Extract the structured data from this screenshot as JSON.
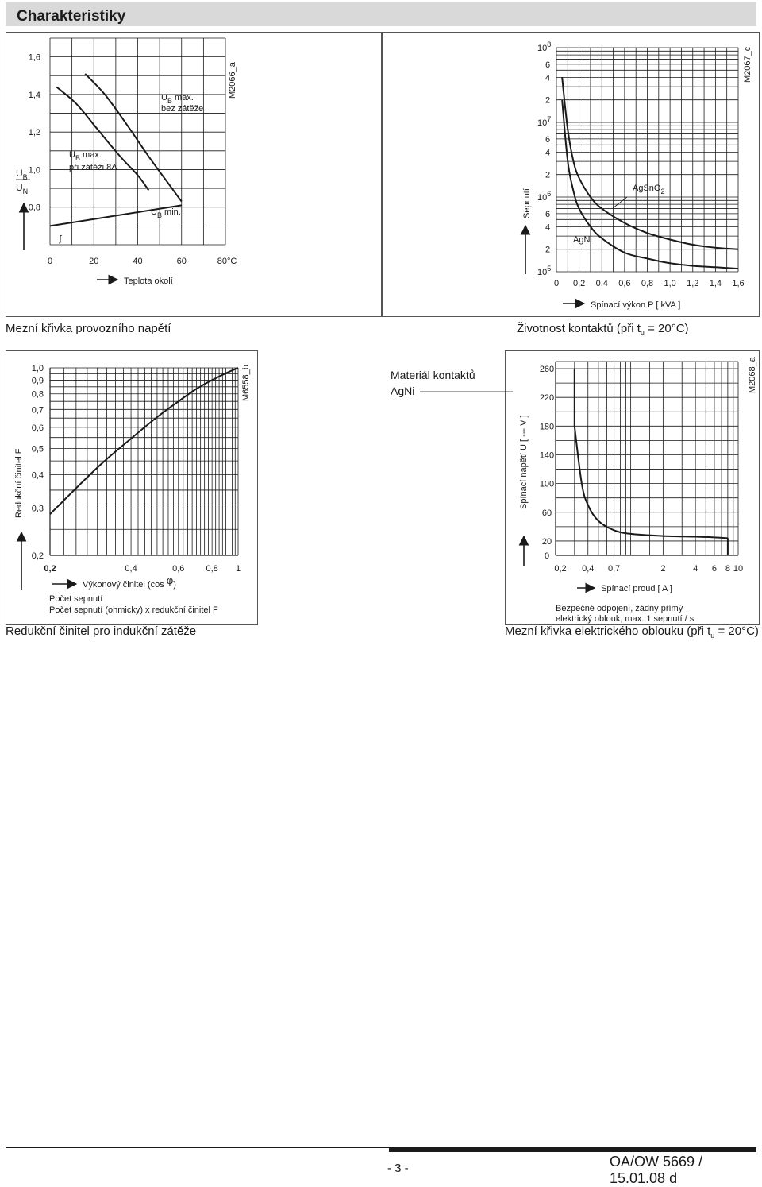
{
  "header": {
    "title": "Charakteristiky"
  },
  "captions": {
    "c1": "Mezní křivka provozního napětí",
    "c2_pre": "Životnost kontaktů (při t",
    "c2_sub": "u",
    "c2_post": " = 20°C)",
    "c3": "Redukční činitel pro indukční zátěže",
    "c4_pre": "Mezní křivka elektrického oblouku (při t",
    "c4_sub": "u",
    "c4_post": " = 20°C)"
  },
  "footer": {
    "page": "- 3 -",
    "doc": "OA/OW 5669 / 15.01.08 d"
  },
  "chart_data": [
    {
      "id": "M2066_a",
      "type": "line",
      "xlabel": "Teplota okolí",
      "x_ticks": [
        "0",
        "20",
        "40",
        "60",
        "80°C"
      ],
      "y_ticks": [
        "0,8",
        "1,0",
        "1,2",
        "1,4",
        "1,6"
      ],
      "ylabel": [
        "U",
        "B",
        "U",
        "N"
      ],
      "xlim": [
        0,
        80
      ],
      "ylim": [
        0.6,
        1.7
      ],
      "series": [
        {
          "name": "U B max. bez zátěže",
          "label_main": "U",
          "label_sub": "B",
          "label_rest": " max.",
          "label_line2": "bez zátěže",
          "x": [
            16,
            25,
            35,
            45,
            55,
            60
          ],
          "y": [
            1.51,
            1.4,
            1.24,
            1.07,
            0.91,
            0.83
          ]
        },
        {
          "name": "U B max. při zátěži 8A",
          "label_main": "U",
          "label_sub": "B",
          "label_rest": " max.",
          "label_line2": "při zátěži 8A",
          "x": [
            3,
            12,
            22,
            32,
            40,
            45
          ],
          "y": [
            1.44,
            1.35,
            1.21,
            1.07,
            0.97,
            0.89
          ]
        },
        {
          "name": "U B min.",
          "label_main": "U",
          "label_sub": "B",
          "label_rest": " min.",
          "x": [
            0,
            60
          ],
          "y": [
            0.7,
            0.81
          ]
        }
      ],
      "code": "M2066_a"
    },
    {
      "id": "M2067_c",
      "type": "line",
      "xlabel": "Spínací výkon P [ kVA ]",
      "ylabel": "Sepnutí",
      "y_scale": "log",
      "x_ticks": [
        "0",
        "0,2",
        "0,4",
        "0,6",
        "0,8",
        "1,0",
        "1,2",
        "1,4",
        "1,6"
      ],
      "y_tick_labels": [
        {
          "base": "10",
          "exp": "5"
        },
        {
          "base": "2"
        },
        {
          "base": "4"
        },
        {
          "base": "6"
        },
        {
          "base": "10",
          "exp": "6"
        },
        {
          "base": "2"
        },
        {
          "base": "4"
        },
        {
          "base": "6"
        },
        {
          "base": "10",
          "exp": "7"
        },
        {
          "base": "2"
        },
        {
          "base": "4"
        },
        {
          "base": "6"
        },
        {
          "base": "10",
          "exp": "8"
        }
      ],
      "xlim": [
        0,
        1.6
      ],
      "ylim": [
        100000,
        100000000
      ],
      "series": [
        {
          "name": "AgSnO2",
          "label_main": "AgSnO",
          "label_sub": "2",
          "x": [
            0.05,
            0.1,
            0.15,
            0.2,
            0.3,
            0.4,
            0.6,
            0.8,
            1.0,
            1.2,
            1.4,
            1.6
          ],
          "y": [
            40000000,
            8000000,
            3000000,
            1800000,
            1000000,
            700000,
            450000,
            330000,
            270000,
            230000,
            210000,
            200000
          ]
        },
        {
          "name": "AgNi",
          "label_main": "AgNi",
          "label_sub": "",
          "x": [
            0.05,
            0.1,
            0.15,
            0.2,
            0.3,
            0.4,
            0.6,
            0.8,
            1.0,
            1.2,
            1.4,
            1.6
          ],
          "y": [
            20000000,
            3000000,
            1200000,
            700000,
            400000,
            280000,
            180000,
            150000,
            130000,
            120000,
            115000,
            110000
          ]
        }
      ],
      "code": "M2067_c"
    },
    {
      "id": "M6558_b",
      "type": "line",
      "xlabel": "Výkonový činitel (cos ",
      "xlabel_phi": "φ",
      "xlabel_end": ")",
      "ylabel": "Redukční činitel F",
      "x_scale": "log",
      "y_scale": "log",
      "x_ticks": [
        "0,2",
        "0,4",
        "0,6",
        "0,8",
        "1"
      ],
      "y_ticks": [
        "0,2",
        "0,3",
        "0,4",
        "0,5",
        "0,6",
        "0,7",
        "0,8",
        "0,9",
        "1,0"
      ],
      "xlim": [
        0.2,
        1
      ],
      "ylim": [
        0.2,
        1.0
      ],
      "legend": [
        "Počet sepnutí",
        "Počet sepnutí (ohmicky) x redukční činitel F"
      ],
      "series": [
        {
          "x": [
            0.2,
            0.3,
            0.4,
            0.5,
            0.6,
            0.7,
            0.8,
            0.9,
            1.0
          ],
          "y": [
            0.285,
            0.425,
            0.545,
            0.655,
            0.75,
            0.835,
            0.9,
            0.955,
            1.0
          ]
        }
      ],
      "code": "M6558_b"
    },
    {
      "id": "M2068_a",
      "type": "line",
      "xlabel": "Spínací proud [ A ]",
      "ylabel": "Spínací napětí U [ --- V ]",
      "x_scale": "log",
      "x_ticks": [
        "0,2",
        "0,4",
        "0,7",
        "2",
        "4",
        "6",
        "8",
        "10"
      ],
      "y_ticks": [
        "0",
        "20",
        "60",
        "100",
        "140",
        "180",
        "220",
        "260"
      ],
      "xlim": [
        0.2,
        10
      ],
      "ylim": [
        0,
        270
      ],
      "legend_title": [
        "Materiál kontaktů",
        "AgNi"
      ],
      "annotation": [
        "Bezpečné odpojení, žádný přímý",
        "elektrický oblouk, max. 1 sepnutí / s"
      ],
      "series": [
        {
          "name": "AgNi",
          "x": [
            0.3,
            0.3,
            0.35,
            0.4,
            0.5,
            0.7,
            1.0,
            2.0,
            4.0,
            6.0,
            8.0,
            8.0
          ],
          "y": [
            260,
            180,
            100,
            70,
            48,
            35,
            30,
            27,
            26,
            25,
            24,
            0
          ]
        }
      ],
      "code": "M2068_a"
    }
  ]
}
